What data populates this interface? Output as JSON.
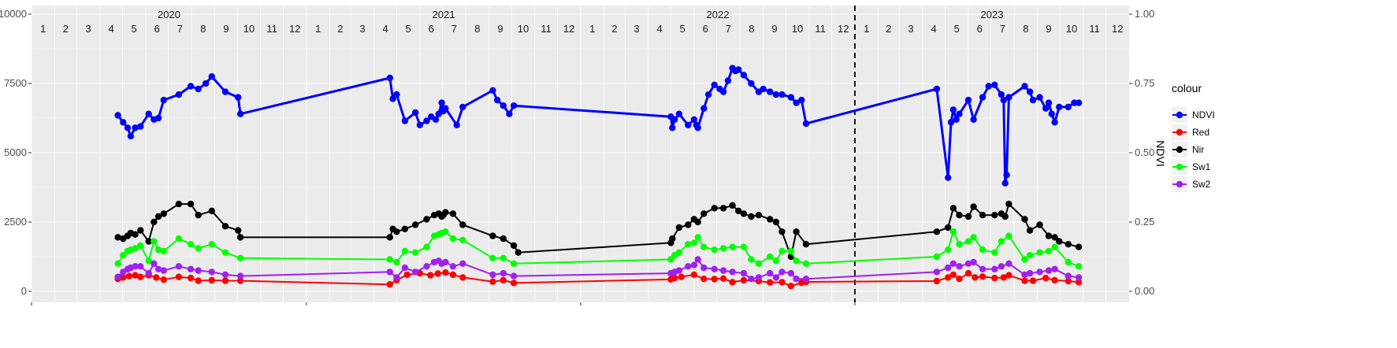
{
  "chart_data": {
    "type": "line",
    "title": "",
    "xlabel": "",
    "ylabel": "",
    "y2label": "NDVI",
    "ylim": [
      0,
      10000
    ],
    "y2lim": [
      0,
      1
    ],
    "y_ticks": [
      "0",
      "2500",
      "5000",
      "7500",
      "10000"
    ],
    "y2_ticks": [
      "0.00",
      "0.25",
      "0.50",
      "0.75",
      "1.00"
    ],
    "xlim": [
      "2020-01-01",
      "2023-12-31"
    ],
    "years": [
      "2020",
      "2021",
      "2022",
      "2023"
    ],
    "months": [
      "1",
      "2",
      "3",
      "4",
      "5",
      "6",
      "7",
      "8",
      "9",
      "10",
      "11",
      "12"
    ],
    "vline_date": "2023-01-01",
    "grid": true,
    "legend": {
      "title": "colour",
      "position": "right",
      "entries": [
        "NDVI",
        "Red",
        "Nir",
        "Sw1",
        "Sw2"
      ]
    },
    "series": [
      {
        "name": "NDVI",
        "color": "#0000ff",
        "axis": "right",
        "line_width": 3,
        "x": [
          "2020-04-25",
          "2020-05-02",
          "2020-05-08",
          "2020-05-12",
          "2020-05-18",
          "2020-05-25",
          "2020-06-05",
          "2020-06-12",
          "2020-06-18",
          "2020-06-25",
          "2020-07-15",
          "2020-07-31",
          "2020-08-10",
          "2020-08-20",
          "2020-08-28",
          "2020-09-15",
          "2020-10-02",
          "2020-10-05",
          "2021-04-22",
          "2021-04-26",
          "2021-05-01",
          "2021-05-12",
          "2021-05-26",
          "2021-06-01",
          "2021-06-10",
          "2021-06-16",
          "2021-06-22",
          "2021-06-26",
          "2021-06-30",
          "2021-07-02",
          "2021-07-05",
          "2021-07-20",
          "2021-07-28",
          "2021-09-06",
          "2021-09-12",
          "2021-09-20",
          "2021-09-28",
          "2021-10-04",
          "2022-05-01",
          "2022-05-03",
          "2022-05-06",
          "2022-05-12",
          "2022-05-24",
          "2022-06-01",
          "2022-06-04",
          "2022-06-06",
          "2022-06-14",
          "2022-06-20",
          "2022-06-28",
          "2022-07-05",
          "2022-07-10",
          "2022-07-16",
          "2022-07-22",
          "2022-07-26",
          "2022-07-30",
          "2022-08-06",
          "2022-08-16",
          "2022-08-26",
          "2022-09-01",
          "2022-09-10",
          "2022-09-18",
          "2022-09-26",
          "2022-10-08",
          "2022-10-15",
          "2022-10-22",
          "2022-10-28",
          "2023-04-20",
          "2023-05-05",
          "2023-05-09",
          "2023-05-12",
          "2023-05-16",
          "2023-05-20",
          "2023-06-01",
          "2023-06-08",
          "2023-06-20",
          "2023-06-28",
          "2023-07-06",
          "2023-07-15",
          "2023-07-18",
          "2023-07-20",
          "2023-07-22",
          "2023-07-25",
          "2023-08-15",
          "2023-08-22",
          "2023-08-26",
          "2023-09-04",
          "2023-09-12",
          "2023-09-16",
          "2023-09-20",
          "2023-09-24",
          "2023-09-30",
          "2023-10-12",
          "2023-10-20",
          "2023-10-26"
        ],
        "y": [
          0.635,
          0.61,
          0.59,
          0.56,
          0.59,
          0.595,
          0.64,
          0.62,
          0.625,
          0.69,
          0.71,
          0.74,
          0.73,
          0.75,
          0.775,
          0.72,
          0.7,
          0.64,
          0.77,
          0.695,
          0.71,
          0.615,
          0.645,
          0.6,
          0.615,
          0.63,
          0.62,
          0.64,
          0.68,
          0.65,
          0.66,
          0.6,
          0.665,
          0.725,
          0.69,
          0.67,
          0.64,
          0.67,
          0.63,
          0.59,
          0.62,
          0.64,
          0.6,
          0.62,
          0.6,
          0.59,
          0.66,
          0.71,
          0.745,
          0.73,
          0.72,
          0.76,
          0.805,
          0.795,
          0.8,
          0.78,
          0.75,
          0.72,
          0.73,
          0.72,
          0.71,
          0.71,
          0.7,
          0.68,
          0.69,
          0.605,
          0.73,
          0.41,
          0.61,
          0.655,
          0.62,
          0.64,
          0.69,
          0.62,
          0.7,
          0.74,
          0.745,
          0.71,
          0.69,
          0.39,
          0.42,
          0.7,
          0.74,
          0.72,
          0.69,
          0.7,
          0.66,
          0.68,
          0.64,
          0.61,
          0.665,
          0.665,
          0.68,
          0.68
        ]
      },
      {
        "name": "Red",
        "color": "#ff0000",
        "axis": "left",
        "line_width": 2,
        "x": [
          "2020-04-25",
          "2020-05-02",
          "2020-05-10",
          "2020-05-18",
          "2020-05-25",
          "2020-06-05",
          "2020-06-15",
          "2020-06-25",
          "2020-07-15",
          "2020-07-31",
          "2020-08-10",
          "2020-08-28",
          "2020-09-15",
          "2020-10-05",
          "2021-04-22",
          "2021-05-01",
          "2021-05-15",
          "2021-06-01",
          "2021-06-15",
          "2021-06-25",
          "2021-07-05",
          "2021-07-15",
          "2021-07-28",
          "2021-09-06",
          "2021-09-20",
          "2021-10-04",
          "2022-05-01",
          "2022-05-06",
          "2022-05-15",
          "2022-06-01",
          "2022-06-14",
          "2022-06-28",
          "2022-07-10",
          "2022-07-22",
          "2022-08-06",
          "2022-08-26",
          "2022-09-10",
          "2022-09-26",
          "2022-10-08",
          "2022-10-22",
          "2022-10-28",
          "2023-04-20",
          "2023-05-05",
          "2023-05-12",
          "2023-05-20",
          "2023-06-01",
          "2023-06-10",
          "2023-06-20",
          "2023-07-06",
          "2023-07-18",
          "2023-07-25",
          "2023-08-15",
          "2023-08-26",
          "2023-09-12",
          "2023-09-24",
          "2023-10-12",
          "2023-10-26"
        ],
        "y": [
          450,
          500,
          550,
          580,
          520,
          580,
          500,
          420,
          520,
          480,
          380,
          400,
          380,
          380,
          250,
          400,
          600,
          650,
          580,
          640,
          680,
          600,
          500,
          350,
          400,
          300,
          430,
          480,
          520,
          600,
          450,
          440,
          460,
          330,
          400,
          370,
          320,
          330,
          190,
          310,
          340,
          370,
          500,
          600,
          450,
          650,
          500,
          530,
          480,
          500,
          580,
          380,
          380,
          480,
          400,
          370,
          330
        ]
      },
      {
        "name": "Nir",
        "color": "#000000",
        "axis": "left",
        "line_width": 2,
        "x": [
          "2020-04-25",
          "2020-05-02",
          "2020-05-08",
          "2020-05-12",
          "2020-05-18",
          "2020-05-25",
          "2020-06-05",
          "2020-06-12",
          "2020-06-18",
          "2020-06-25",
          "2020-07-15",
          "2020-07-31",
          "2020-08-10",
          "2020-08-28",
          "2020-09-15",
          "2020-10-02",
          "2020-10-05",
          "2021-04-22",
          "2021-04-26",
          "2021-05-01",
          "2021-05-12",
          "2021-05-26",
          "2021-06-10",
          "2021-06-20",
          "2021-06-26",
          "2021-06-30",
          "2021-07-02",
          "2021-07-05",
          "2021-07-15",
          "2021-07-28",
          "2021-09-06",
          "2021-09-20",
          "2021-10-04",
          "2021-10-10",
          "2022-05-01",
          "2022-05-03",
          "2022-05-12",
          "2022-05-24",
          "2022-06-01",
          "2022-06-06",
          "2022-06-14",
          "2022-06-28",
          "2022-07-10",
          "2022-07-22",
          "2022-07-30",
          "2022-08-06",
          "2022-08-16",
          "2022-08-26",
          "2022-09-10",
          "2022-09-18",
          "2022-09-26",
          "2022-10-08",
          "2022-10-15",
          "2022-10-28",
          "2023-04-20",
          "2023-05-05",
          "2023-05-12",
          "2023-05-20",
          "2023-06-01",
          "2023-06-08",
          "2023-06-20",
          "2023-07-06",
          "2023-07-15",
          "2023-07-20",
          "2023-07-25",
          "2023-08-15",
          "2023-08-22",
          "2023-09-04",
          "2023-09-16",
          "2023-09-24",
          "2023-09-30",
          "2023-10-12",
          "2023-10-26"
        ],
        "y": [
          1950,
          1900,
          2000,
          2100,
          2050,
          2200,
          1800,
          2500,
          2700,
          2800,
          3150,
          3150,
          2750,
          2900,
          2350,
          2200,
          1950,
          1950,
          2250,
          2150,
          2250,
          2400,
          2600,
          2750,
          2800,
          2700,
          2750,
          2850,
          2800,
          2400,
          2000,
          1900,
          1650,
          1400,
          1750,
          1900,
          2300,
          2400,
          2600,
          2500,
          2800,
          3000,
          3000,
          3100,
          2900,
          2800,
          2700,
          2750,
          2600,
          2500,
          2150,
          1250,
          2150,
          1700,
          2150,
          2300,
          3000,
          2750,
          2700,
          3050,
          2750,
          2750,
          2800,
          2700,
          3150,
          2600,
          2200,
          2400,
          2000,
          1950,
          1800,
          1700,
          1600
        ]
      },
      {
        "name": "Sw1",
        "color": "#00ff00",
        "axis": "left",
        "line_width": 2,
        "x": [
          "2020-04-25",
          "2020-05-02",
          "2020-05-08",
          "2020-05-12",
          "2020-05-18",
          "2020-05-25",
          "2020-06-05",
          "2020-06-12",
          "2020-06-18",
          "2020-06-25",
          "2020-07-15",
          "2020-07-31",
          "2020-08-10",
          "2020-08-28",
          "2020-09-15",
          "2020-10-05",
          "2021-04-22",
          "2021-05-01",
          "2021-05-12",
          "2021-05-26",
          "2021-06-10",
          "2021-06-20",
          "2021-06-26",
          "2021-06-30",
          "2021-07-05",
          "2021-07-15",
          "2021-07-28",
          "2021-09-06",
          "2021-09-20",
          "2021-10-04",
          "2022-05-01",
          "2022-05-06",
          "2022-05-12",
          "2022-05-24",
          "2022-06-01",
          "2022-06-06",
          "2022-06-14",
          "2022-06-28",
          "2022-07-10",
          "2022-07-22",
          "2022-08-06",
          "2022-08-16",
          "2022-08-26",
          "2022-09-10",
          "2022-09-18",
          "2022-09-26",
          "2022-10-08",
          "2022-10-15",
          "2022-10-28",
          "2023-04-20",
          "2023-05-05",
          "2023-05-12",
          "2023-05-20",
          "2023-06-01",
          "2023-06-08",
          "2023-06-20",
          "2023-07-06",
          "2023-07-15",
          "2023-07-25",
          "2023-08-15",
          "2023-08-22",
          "2023-09-04",
          "2023-09-16",
          "2023-09-24",
          "2023-10-12",
          "2023-10-26"
        ],
        "y": [
          1000,
          1300,
          1450,
          1500,
          1550,
          1650,
          1100,
          1800,
          1500,
          1450,
          1900,
          1700,
          1550,
          1700,
          1400,
          1200,
          1150,
          1050,
          1450,
          1400,
          1600,
          2000,
          2050,
          2100,
          2150,
          1900,
          1850,
          1200,
          1200,
          1000,
          1150,
          1300,
          1400,
          1700,
          1750,
          1950,
          1600,
          1500,
          1550,
          1600,
          1600,
          1150,
          1000,
          1250,
          1100,
          1450,
          1450,
          1100,
          1000,
          1250,
          1500,
          2150,
          1700,
          1800,
          1950,
          1500,
          1400,
          1800,
          2000,
          1150,
          1300,
          1400,
          1450,
          1600,
          1050,
          900
        ]
      },
      {
        "name": "Sw2",
        "color": "#a020f0",
        "axis": "left",
        "line_width": 2,
        "x": [
          "2020-04-25",
          "2020-05-02",
          "2020-05-08",
          "2020-05-12",
          "2020-05-18",
          "2020-05-25",
          "2020-06-05",
          "2020-06-12",
          "2020-06-18",
          "2020-06-25",
          "2020-07-15",
          "2020-07-31",
          "2020-08-10",
          "2020-08-28",
          "2020-09-15",
          "2020-10-05",
          "2021-04-22",
          "2021-05-01",
          "2021-05-12",
          "2021-05-26",
          "2021-06-10",
          "2021-06-20",
          "2021-06-26",
          "2021-06-30",
          "2021-07-05",
          "2021-07-15",
          "2021-07-28",
          "2021-09-06",
          "2021-09-20",
          "2021-10-04",
          "2022-05-01",
          "2022-05-06",
          "2022-05-12",
          "2022-05-24",
          "2022-06-01",
          "2022-06-06",
          "2022-06-14",
          "2022-06-28",
          "2022-07-10",
          "2022-07-22",
          "2022-08-06",
          "2022-08-16",
          "2022-08-26",
          "2022-09-10",
          "2022-09-18",
          "2022-09-26",
          "2022-10-08",
          "2022-10-15",
          "2022-10-28",
          "2023-04-20",
          "2023-05-05",
          "2023-05-12",
          "2023-05-20",
          "2023-06-01",
          "2023-06-08",
          "2023-06-20",
          "2023-07-06",
          "2023-07-15",
          "2023-07-25",
          "2023-08-15",
          "2023-08-22",
          "2023-09-04",
          "2023-09-16",
          "2023-09-24",
          "2023-10-12",
          "2023-10-26"
        ],
        "y": [
          520,
          700,
          800,
          850,
          900,
          900,
          650,
          1000,
          800,
          750,
          900,
          800,
          750,
          700,
          600,
          550,
          700,
          500,
          850,
          700,
          900,
          1050,
          1100,
          1000,
          1050,
          900,
          1000,
          600,
          650,
          550,
          650,
          700,
          750,
          900,
          950,
          1150,
          850,
          800,
          750,
          700,
          650,
          450,
          500,
          650,
          500,
          700,
          650,
          450,
          450,
          700,
          850,
          1000,
          900,
          1000,
          1050,
          800,
          800,
          900,
          1000,
          600,
          650,
          700,
          750,
          800,
          550,
          500
        ]
      }
    ]
  }
}
